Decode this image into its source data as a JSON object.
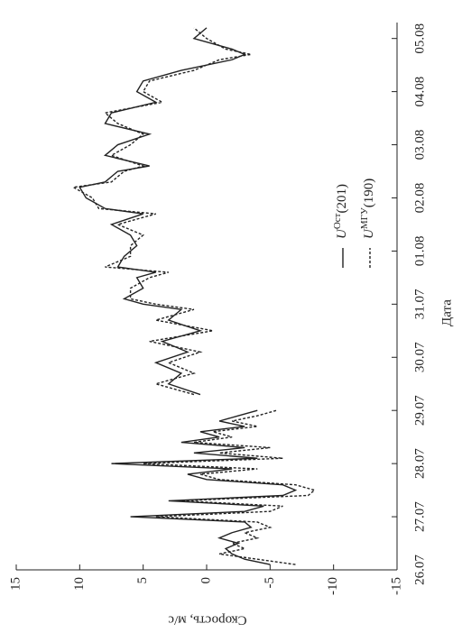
{
  "chart_data": {
    "type": "line",
    "x_label": "Дата",
    "y_label": "Скорость, м/с",
    "x": [
      0.1,
      0.2,
      0.3,
      0.4,
      0.5,
      0.6,
      0.7,
      0.8,
      0.9,
      1.0,
      1.1,
      1.2,
      1.3,
      1.4,
      1.5,
      1.6,
      1.7,
      1.8,
      1.9,
      2.0,
      2.1,
      2.2,
      2.3,
      2.4,
      2.5,
      2.6,
      2.7,
      2.8,
      2.9,
      3.0,
      3.15,
      3.3,
      3.5,
      3.7,
      3.9,
      4.1,
      4.3,
      4.5,
      4.7,
      4.9,
      5.0,
      5.1,
      5.3,
      5.5,
      5.6,
      5.7,
      5.9,
      6.1,
      6.3,
      6.5,
      6.7,
      6.8,
      7.0,
      7.2,
      7.3,
      7.5,
      7.6,
      7.8,
      8.0,
      8.2,
      8.4,
      8.6,
      8.8,
      9.0,
      9.2,
      9.4,
      9.6,
      9.7,
      9.8,
      10.0,
      10.2
    ],
    "series": [
      {
        "name": "UОст(201)",
        "color": "#222222",
        "dash": false,
        "values": [
          -5,
          -3,
          -2,
          -1.5,
          -2.5,
          -1,
          -2,
          -3.5,
          -3,
          6,
          -3,
          -4.5,
          3,
          -6,
          -7,
          -6,
          0,
          1.5,
          -2,
          7.5,
          -4,
          1,
          -3,
          2,
          -1,
          0.5,
          -3,
          -1,
          -2.5,
          -4,
          null,
          0.5,
          3,
          2,
          4,
          1.5,
          3.5,
          0.5,
          3,
          2,
          5,
          6.5,
          5,
          5.5,
          4,
          7,
          6.5,
          5.5,
          6,
          7.5,
          5,
          8,
          9.5,
          10,
          8,
          7,
          4.5,
          8,
          7,
          4.5,
          8,
          7.5,
          4,
          5.5,
          5,
          2,
          -2,
          -3,
          -2,
          1,
          0
        ]
      },
      {
        "name": "UМГУ(190)",
        "color": "#222222",
        "dash": true,
        "values": [
          -7,
          -4,
          -1,
          -3,
          -2,
          -4,
          -3,
          -5,
          -4,
          4,
          -5,
          -6,
          2,
          -8,
          -8.5,
          -7,
          -1,
          0.5,
          -4,
          5,
          -6,
          -1,
          -5,
          1,
          -2,
          -0.5,
          -4,
          -2,
          -4,
          -5.5,
          null,
          1,
          4,
          1,
          3,
          0.5,
          4.5,
          -0.5,
          4,
          1,
          4,
          6,
          6,
          4.5,
          3,
          8,
          6,
          6,
          5,
          7,
          4,
          8.5,
          9,
          10.5,
          7.5,
          6.5,
          5,
          7.5,
          6,
          5,
          7,
          8,
          3.5,
          5,
          4.5,
          1,
          -1,
          -3.5,
          -1.5,
          0,
          1
        ]
      }
    ],
    "xlim": [
      0,
      10.3
    ],
    "xticks": [
      {
        "value": 0,
        "label": "26.07"
      },
      {
        "value": 1,
        "label": "27.07"
      },
      {
        "value": 2,
        "label": "28.07"
      },
      {
        "value": 3,
        "label": "29.07"
      },
      {
        "value": 4,
        "label": "30.07"
      },
      {
        "value": 5,
        "label": "31.07"
      },
      {
        "value": 6,
        "label": "01.08"
      },
      {
        "value": 7,
        "label": "02.08"
      },
      {
        "value": 8,
        "label": "03.08"
      },
      {
        "value": 9,
        "label": "04.08"
      },
      {
        "value": 10,
        "label": "05.08"
      }
    ],
    "ylim": [
      -15,
      15
    ],
    "yticks": [
      -15,
      -10,
      -5,
      0,
      5,
      10,
      15
    ],
    "legend": "upper right"
  }
}
